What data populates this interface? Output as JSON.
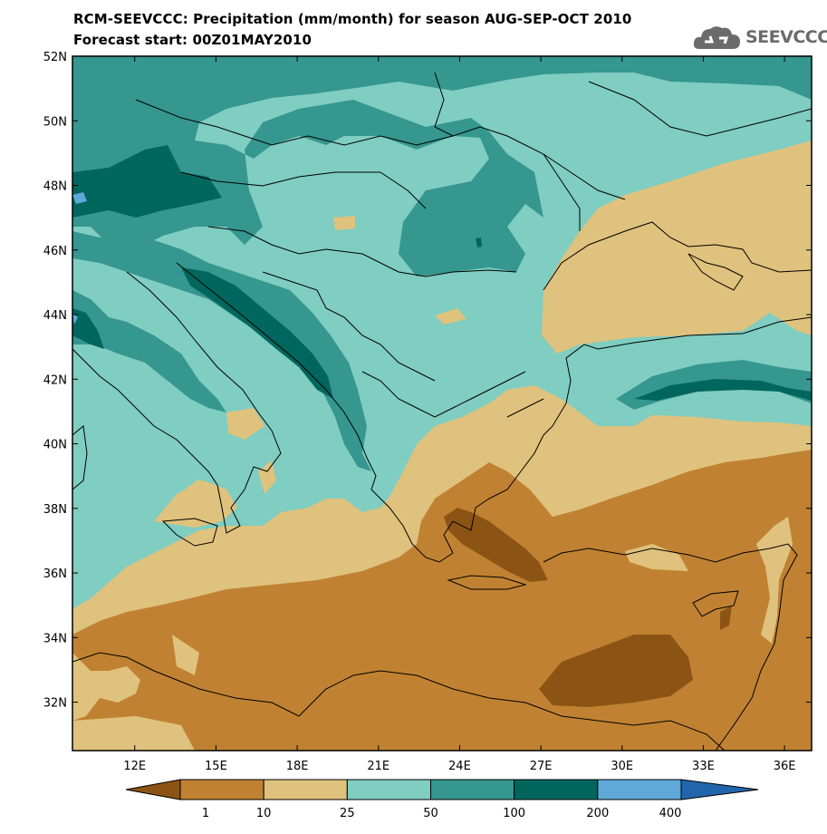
{
  "header": {
    "title_line1": "RCM-SEEVCCC: Precipitation (mm/month) for season AUG-SEP-OCT 2010",
    "title_line2": "Forecast start: 00Z01MAY2010"
  },
  "logo": {
    "text": "SEEVCCC",
    "icon": "cloud-logo-icon"
  },
  "map": {
    "lat_labels": [
      "52N",
      "50N",
      "48N",
      "46N",
      "44N",
      "42N",
      "40N",
      "38N",
      "36N",
      "34N",
      "32N"
    ],
    "lon_labels": [
      "12E",
      "15E",
      "18E",
      "21E",
      "24E",
      "27E",
      "30E",
      "33E",
      "36E"
    ],
    "lat_values": [
      52,
      50,
      48,
      46,
      44,
      42,
      40,
      38,
      36,
      34,
      32
    ],
    "lon_values": [
      12,
      15,
      18,
      21,
      24,
      27,
      30,
      33,
      36
    ],
    "lat_range": [
      30.5,
      52
    ],
    "lon_range": [
      9.7,
      37.0
    ],
    "projection": "lat-lon",
    "background_class": "10-25"
  },
  "colorbar": {
    "labels": [
      "1",
      "10",
      "25",
      "50",
      "100",
      "200",
      "400"
    ],
    "colors": [
      "#8c5414",
      "#c08232",
      "#dfc27d",
      "#80cdc1",
      "#35978f",
      "#01665e",
      "#5ea9d8",
      "#2166ac"
    ]
  }
}
